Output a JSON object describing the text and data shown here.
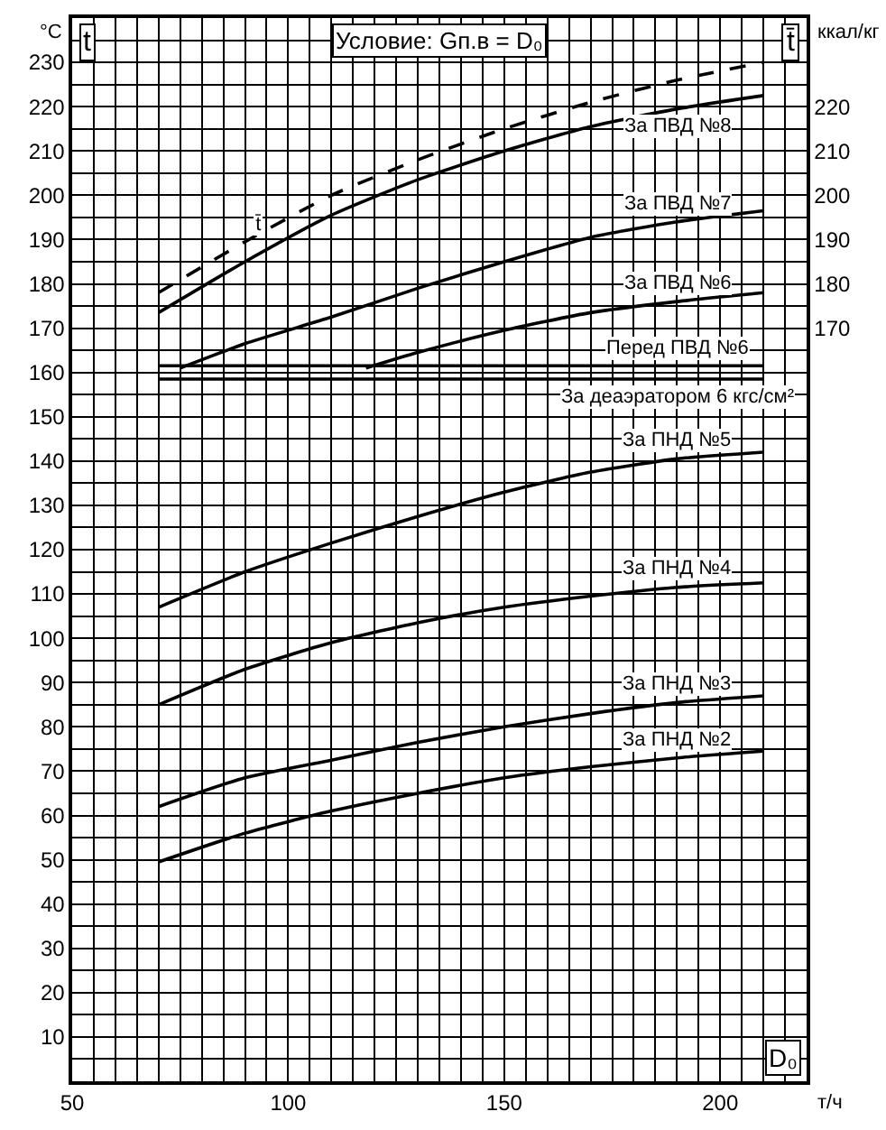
{
  "chart_data": {
    "type": "line",
    "title": "Условие: Gп.в = D₀",
    "xlabel": "D₀",
    "ylabel": "t",
    "y2label": "t̄",
    "annotations": [
      "°C",
      "ккал/кг",
      "т/ч"
    ],
    "x": [
      70,
      90,
      110,
      130,
      150,
      170,
      190,
      210
    ],
    "series": [
      {
        "name": "t̄",
        "color": "#000000",
        "line_style": "dashed",
        "axis": "y2",
        "values": [
          178,
          189.5,
          200,
          208,
          215,
          221,
          226,
          230
        ]
      },
      {
        "name": "За ПВД №8",
        "color": "#000000",
        "values": [
          173.5,
          185,
          195.5,
          203.5,
          210,
          215.5,
          219.5,
          222.5
        ]
      },
      {
        "name": "За ПВД №7",
        "color": "#000000",
        "x": [
          75,
          90,
          110,
          130,
          150,
          170,
          190,
          210
        ],
        "values": [
          161,
          166.5,
          172.5,
          179,
          185,
          190.5,
          194,
          196.5
        ]
      },
      {
        "name": "За ПВД №6",
        "color": "#000000",
        "x": [
          118,
          130,
          150,
          170,
          190,
          210
        ],
        "values": [
          161,
          164.5,
          169.5,
          173.5,
          176,
          178
        ]
      },
      {
        "name": "Перед ПВД №6",
        "color": "#000000",
        "values": [
          161.5,
          161.5,
          161.5,
          161.5,
          161.5,
          161.5,
          161.5,
          161.5
        ]
      },
      {
        "name": "За деаэратором 6 кгс/см²",
        "color": "#000000",
        "values": [
          158.5,
          158.5,
          158.5,
          158.5,
          158.5,
          158.5,
          158.5,
          158.5
        ]
      },
      {
        "name": "За ПНД №5",
        "color": "#000000",
        "values": [
          107,
          115,
          121.5,
          127.5,
          133,
          137.5,
          140.5,
          142
        ]
      },
      {
        "name": "За ПНД №4",
        "color": "#000000",
        "values": [
          85,
          93,
          99,
          103.5,
          107,
          109.5,
          111.5,
          112.5
        ]
      },
      {
        "name": "За ПНД №3",
        "color": "#000000",
        "values": [
          62,
          68.5,
          72.5,
          76.5,
          80,
          83,
          85.5,
          87
        ]
      },
      {
        "name": "За ПНД №2",
        "color": "#000000",
        "values": [
          49.5,
          56,
          61,
          65,
          68.5,
          71,
          73,
          74.5
        ]
      }
    ],
    "xlim": [
      50,
      220
    ],
    "xticks": [
      50,
      100,
      150,
      200
    ],
    "ylim": [
      0,
      240
    ],
    "yticks": [
      10,
      20,
      30,
      40,
      50,
      60,
      70,
      80,
      90,
      100,
      110,
      120,
      130,
      140,
      150,
      160,
      170,
      180,
      190,
      200,
      210,
      220,
      230
    ],
    "y2lim": [
      0,
      240
    ],
    "y2ticks": [
      170,
      180,
      190,
      200,
      210,
      220
    ],
    "grid": true,
    "legend": false,
    "line_style": "solid",
    "marker": "none"
  }
}
